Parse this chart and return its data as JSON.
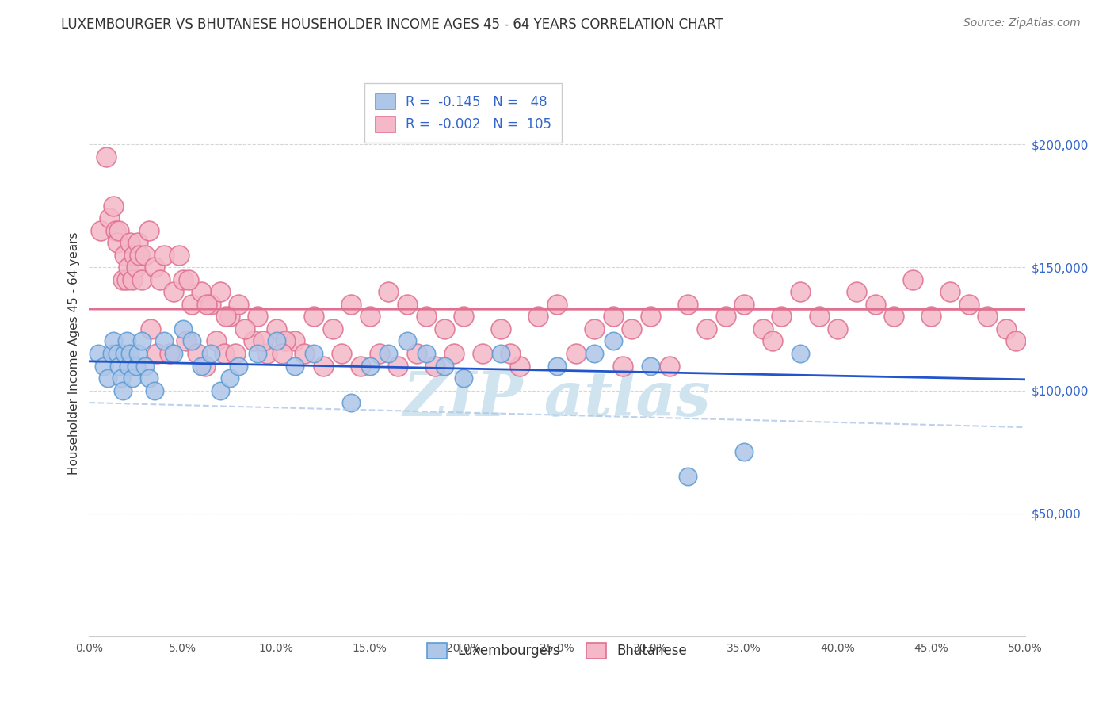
{
  "title": "LUXEMBOURGER VS BHUTANESE HOUSEHOLDER INCOME AGES 45 - 64 YEARS CORRELATION CHART",
  "source": "Source: ZipAtlas.com",
  "ylabel": "Householder Income Ages 45 - 64 years",
  "xlim": [
    0.0,
    50.0
  ],
  "ylim": [
    0,
    230000
  ],
  "ytick_positions": [
    50000,
    100000,
    150000,
    200000
  ],
  "ytick_labels": [
    "$50,000",
    "$100,000",
    "$150,000",
    "$200,000"
  ],
  "lux_R": -0.145,
  "bhu_R": -0.002,
  "background_color": "#ffffff",
  "grid_color": "#cccccc",
  "lux_color": "#aec6e8",
  "lux_edge_color": "#5b9bd5",
  "bhu_color": "#f4b8c8",
  "bhu_edge_color": "#e07090",
  "lux_line_color": "#2255cc",
  "bhu_line_color": "#e07090",
  "bhu_dashed_color": "#aec6e8",
  "tick_label_color": "#3366cc",
  "legend_text_color": "#3366cc",
  "watermark_color": "#d0e4f0",
  "lux_scatter_x": [
    0.5,
    0.8,
    1.0,
    1.2,
    1.3,
    1.5,
    1.6,
    1.7,
    1.8,
    1.9,
    2.0,
    2.1,
    2.2,
    2.3,
    2.5,
    2.6,
    2.8,
    3.0,
    3.2,
    3.5,
    4.0,
    4.5,
    5.0,
    5.5,
    6.0,
    6.5,
    7.0,
    7.5,
    8.0,
    9.0,
    10.0,
    11.0,
    12.0,
    14.0,
    15.0,
    16.0,
    17.0,
    18.0,
    19.0,
    20.0,
    22.0,
    25.0,
    27.0,
    28.0,
    30.0,
    32.0,
    35.0,
    38.0
  ],
  "lux_scatter_y": [
    115000,
    110000,
    105000,
    115000,
    120000,
    115000,
    110000,
    105000,
    100000,
    115000,
    120000,
    110000,
    115000,
    105000,
    110000,
    115000,
    120000,
    110000,
    105000,
    100000,
    120000,
    115000,
    125000,
    120000,
    110000,
    115000,
    100000,
    105000,
    110000,
    115000,
    120000,
    110000,
    115000,
    95000,
    110000,
    115000,
    120000,
    115000,
    110000,
    105000,
    115000,
    110000,
    115000,
    120000,
    110000,
    65000,
    75000,
    115000
  ],
  "bhu_scatter_x": [
    0.6,
    0.9,
    1.1,
    1.3,
    1.4,
    1.5,
    1.6,
    1.8,
    1.9,
    2.0,
    2.1,
    2.2,
    2.3,
    2.4,
    2.5,
    2.6,
    2.7,
    2.8,
    3.0,
    3.2,
    3.5,
    3.8,
    4.0,
    4.5,
    5.0,
    5.5,
    6.0,
    6.5,
    7.0,
    7.5,
    8.0,
    9.0,
    10.0,
    11.0,
    12.0,
    13.0,
    14.0,
    15.0,
    16.0,
    17.0,
    18.0,
    19.0,
    20.0,
    22.0,
    24.0,
    25.0,
    27.0,
    28.0,
    29.0,
    30.0,
    32.0,
    33.0,
    34.0,
    35.0,
    36.0,
    37.0,
    38.0,
    39.0,
    40.0,
    41.0,
    42.0,
    43.0,
    44.0,
    45.0,
    46.0,
    47.0,
    48.0,
    49.0,
    49.5,
    3.3,
    3.6,
    4.3,
    5.2,
    5.8,
    6.2,
    6.8,
    7.2,
    7.8,
    8.8,
    9.5,
    10.5,
    11.5,
    12.5,
    13.5,
    14.5,
    15.5,
    16.5,
    17.5,
    18.5,
    19.5,
    21.0,
    23.0,
    26.0,
    31.0,
    36.5,
    22.5,
    28.5,
    4.8,
    5.3,
    6.3,
    7.3,
    8.3,
    9.3,
    10.3
  ],
  "bhu_scatter_y": [
    165000,
    195000,
    170000,
    175000,
    165000,
    160000,
    165000,
    145000,
    155000,
    145000,
    150000,
    160000,
    145000,
    155000,
    150000,
    160000,
    155000,
    145000,
    155000,
    165000,
    150000,
    145000,
    155000,
    140000,
    145000,
    135000,
    140000,
    135000,
    140000,
    130000,
    135000,
    130000,
    125000,
    120000,
    130000,
    125000,
    135000,
    130000,
    140000,
    135000,
    130000,
    125000,
    130000,
    125000,
    130000,
    135000,
    125000,
    130000,
    125000,
    130000,
    135000,
    125000,
    130000,
    135000,
    125000,
    130000,
    140000,
    130000,
    125000,
    140000,
    135000,
    130000,
    145000,
    130000,
    140000,
    135000,
    130000,
    125000,
    120000,
    125000,
    115000,
    115000,
    120000,
    115000,
    110000,
    120000,
    115000,
    115000,
    120000,
    115000,
    120000,
    115000,
    110000,
    115000,
    110000,
    115000,
    110000,
    115000,
    110000,
    115000,
    115000,
    110000,
    115000,
    110000,
    120000,
    115000,
    110000,
    155000,
    145000,
    135000,
    130000,
    125000,
    120000,
    115000
  ]
}
